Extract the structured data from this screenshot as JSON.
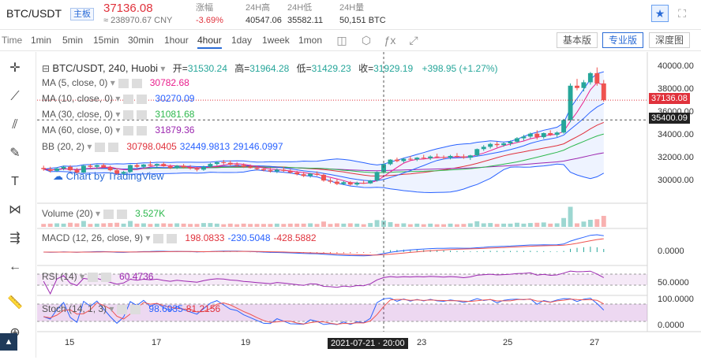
{
  "ticker": {
    "symbol": "BTC/USDT",
    "tag": "主板",
    "last_price": "37136.08",
    "cny": "≈ 238970.67 CNY",
    "change_label": "涨幅",
    "change": "-3.69%",
    "high_label": "24H高",
    "high": "40547.06",
    "low_label": "24H低",
    "low": "35582.11",
    "vol_label": "24H量",
    "vol": "50,151 BTC"
  },
  "toolbar": {
    "time": "Time",
    "intervals": [
      "1min",
      "5min",
      "15min",
      "30min",
      "1hour",
      "4hour",
      "1day",
      "1week",
      "1mon"
    ],
    "active": "4hour",
    "views": [
      "基本版",
      "专业版",
      "深度图"
    ]
  },
  "legend": {
    "title": "BTC/USDT, 240, Huobi",
    "open_label": "开=",
    "open": "31530.24",
    "high_label": "高=",
    "high": "31964.28",
    "low_label": "低=",
    "low": "31429.23",
    "close_label": "收=",
    "close": "31929.19",
    "change": "+398.95 (+1.27%)"
  },
  "indicators": {
    "ma5": {
      "label": "MA (5, close, 0)",
      "value": "30782.68",
      "color": "#e91e8c"
    },
    "ma10": {
      "label": "MA (10, close, 0)",
      "value": "30270.09",
      "color": "#2962ff"
    },
    "ma30": {
      "label": "MA (30, close, 0)",
      "value": "31081.68",
      "color": "#2db84d"
    },
    "ma60": {
      "label": "MA (60, close, 0)",
      "value": "31879.36",
      "color": "#9c27b0"
    },
    "bb": {
      "label": "BB (20, 2)",
      "v1": "30798.0405",
      "v2": "32449.9813",
      "v3": "29146.0997"
    },
    "volume": {
      "label": "Volume (20)",
      "value": "3.527K"
    },
    "macd": {
      "label": "MACD (12, 26, close, 9)",
      "v1": "198.0833",
      "v2": "-230.5048",
      "v3": "-428.5882"
    },
    "rsi": {
      "label": "RSI (14)",
      "value": "60.4736"
    },
    "stoch": {
      "label": "Stoch (14, 1, 3)",
      "v1": "98.6935",
      "v2": "81.2156"
    }
  },
  "watermark": "Chart by TradingView",
  "price_axis": [
    "40000.00",
    "38000.00",
    "36000.00",
    "34000.00",
    "32000.00",
    "30000.00"
  ],
  "price_tags": {
    "last": "37136.08",
    "line": "35400.09"
  },
  "macd_axis": "0.0000",
  "rsi_axis": "50.0000",
  "stoch_axis": [
    "100.0000",
    "0.0000"
  ],
  "time_axis": [
    "15",
    "17",
    "19",
    "23",
    "25",
    "27"
  ],
  "crosshair_time": "2021-07-21 · 20:00",
  "chart_data": {
    "type": "candlestick",
    "ylim": [
      28800,
      40800
    ],
    "candles": [
      [
        31200,
        31400,
        30950,
        31100
      ],
      [
        31100,
        31300,
        30800,
        30950
      ],
      [
        30950,
        31250,
        30850,
        31150
      ],
      [
        31150,
        31400,
        31000,
        31300
      ],
      [
        31300,
        31450,
        30900,
        31000
      ],
      [
        31000,
        31200,
        30700,
        30800
      ],
      [
        30800,
        31500,
        30750,
        31400
      ],
      [
        31400,
        31550,
        31200,
        31300
      ],
      [
        31300,
        31500,
        31100,
        31450
      ],
      [
        31450,
        31600,
        31200,
        31250
      ],
      [
        31250,
        31400,
        30900,
        31000
      ],
      [
        31000,
        31150,
        30600,
        30700
      ],
      [
        30700,
        30950,
        30500,
        30850
      ],
      [
        30850,
        31500,
        30800,
        31450
      ],
      [
        31450,
        31600,
        31200,
        31300
      ],
      [
        31300,
        31550,
        31150,
        31500
      ],
      [
        31500,
        31800,
        31350,
        31400
      ],
      [
        31400,
        31600,
        31200,
        31550
      ],
      [
        31550,
        31700,
        31300,
        31350
      ],
      [
        31350,
        31500,
        31100,
        31200
      ],
      [
        31200,
        31450,
        31100,
        31400
      ],
      [
        31400,
        31550,
        31150,
        31250
      ],
      [
        31250,
        31450,
        31050,
        31150
      ],
      [
        31150,
        31300,
        30900,
        31050
      ],
      [
        31050,
        31400,
        30950,
        31300
      ],
      [
        31300,
        31650,
        31200,
        31550
      ],
      [
        31550,
        31800,
        31400,
        31700
      ],
      [
        31700,
        31900,
        31500,
        31650
      ],
      [
        31650,
        31850,
        31400,
        31500
      ],
      [
        31500,
        31700,
        31300,
        31450
      ],
      [
        31450,
        31600,
        31200,
        31300
      ],
      [
        31300,
        31500,
        31150,
        31200
      ],
      [
        31200,
        31400,
        31000,
        31100
      ],
      [
        31100,
        31250,
        30900,
        31000
      ],
      [
        31000,
        31200,
        30800,
        30900
      ],
      [
        30900,
        31150,
        30750,
        31050
      ],
      [
        31050,
        31300,
        30850,
        30950
      ],
      [
        30950,
        31100,
        30700,
        30800
      ],
      [
        30800,
        30950,
        30550,
        30650
      ],
      [
        30650,
        30850,
        30400,
        30500
      ],
      [
        30500,
        30750,
        30350,
        30700
      ],
      [
        30700,
        30900,
        30500,
        30600
      ],
      [
        30600,
        30700,
        30000,
        30100
      ],
      [
        30100,
        30300,
        29850,
        30000
      ],
      [
        30000,
        30200,
        29700,
        29800
      ],
      [
        29800,
        30050,
        29700,
        29950
      ],
      [
        29950,
        30050,
        29650,
        29750
      ],
      [
        29750,
        30000,
        29650,
        29900
      ],
      [
        29900,
        30100,
        29800,
        29850
      ],
      [
        29850,
        30150,
        29800,
        30100
      ],
      [
        30100,
        30900,
        30000,
        30850
      ],
      [
        30850,
        31600,
        30700,
        31530
      ],
      [
        31530,
        31964,
        31429,
        31929
      ],
      [
        31929,
        32100,
        31700,
        31800
      ],
      [
        31800,
        32050,
        31650,
        32000
      ],
      [
        32000,
        32250,
        31850,
        31950
      ],
      [
        31950,
        32150,
        31800,
        32100
      ],
      [
        32100,
        32350,
        31950,
        32050
      ],
      [
        32050,
        32300,
        31900,
        32200
      ],
      [
        32200,
        32450,
        32050,
        32150
      ],
      [
        32150,
        32300,
        31950,
        32100
      ],
      [
        32100,
        32350,
        31950,
        32250
      ],
      [
        32250,
        32500,
        32100,
        32200
      ],
      [
        32200,
        32400,
        32000,
        32100
      ],
      [
        32100,
        32350,
        31900,
        32300
      ],
      [
        32300,
        32900,
        32200,
        32850
      ],
      [
        32850,
        33200,
        32700,
        33050
      ],
      [
        33050,
        33400,
        32900,
        33300
      ],
      [
        33300,
        33500,
        33000,
        33200
      ],
      [
        33200,
        33450,
        33050,
        33350
      ],
      [
        33350,
        33600,
        33150,
        33500
      ],
      [
        33500,
        33900,
        33400,
        33800
      ],
      [
        33800,
        34100,
        33600,
        33950
      ],
      [
        33950,
        34300,
        33800,
        34200
      ],
      [
        34200,
        34500,
        33700,
        33900
      ],
      [
        33900,
        34300,
        33750,
        34250
      ],
      [
        34250,
        34500,
        34000,
        34100
      ],
      [
        34100,
        34400,
        33900,
        34300
      ],
      [
        34300,
        35500,
        34200,
        35400
      ],
      [
        35400,
        38600,
        35200,
        38400
      ],
      [
        38400,
        39000,
        38000,
        38200
      ],
      [
        38200,
        38900,
        37900,
        38700
      ],
      [
        38700,
        39600,
        38500,
        39500
      ],
      [
        39500,
        40000,
        38400,
        38600
      ],
      [
        38600,
        38900,
        37000,
        37136
      ]
    ]
  }
}
